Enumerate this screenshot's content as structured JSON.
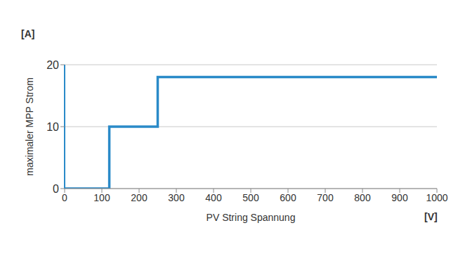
{
  "chart_data": {
    "type": "line",
    "x_label": "PV String Spannung",
    "y_label": "maximaler MPP Strom",
    "annotations": [
      "[A]",
      "[V]"
    ],
    "x": [
      0,
      120,
      120,
      250,
      250,
      1000
    ],
    "values": [
      0,
      0,
      10,
      10,
      18,
      18
    ],
    "color": "#2a8ac8",
    "xlim": [
      0,
      1000
    ],
    "xticks": [
      0,
      100,
      200,
      300,
      400,
      500,
      600,
      700,
      800,
      900,
      1000
    ],
    "ylim": [
      0,
      20
    ],
    "yticks": [
      0,
      10,
      20
    ],
    "grid": true,
    "line_style": "solid",
    "marker": "none"
  }
}
